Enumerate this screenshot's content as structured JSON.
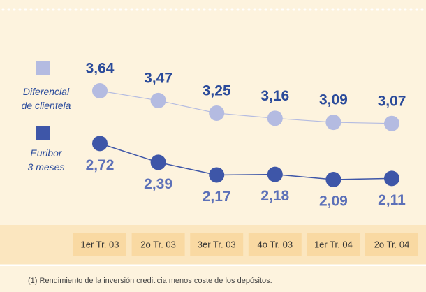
{
  "chart_data": {
    "type": "line",
    "categories": [
      "1er Tr. 03",
      "2o Tr. 03",
      "3er Tr. 03",
      "4o Tr. 03",
      "1er Tr. 04",
      "2o Tr. 04"
    ],
    "series": [
      {
        "name": "Diferencial de clientela",
        "color": "#b4bbe1",
        "values": [
          3.64,
          3.47,
          3.25,
          3.16,
          3.09,
          3.07
        ],
        "value_labels": [
          "3,64",
          "3,47",
          "3,25",
          "3,16",
          "3,09",
          "3,07"
        ]
      },
      {
        "name": "Euribor 3 meses",
        "color": "#3e56a8",
        "values": [
          2.72,
          2.39,
          2.17,
          2.18,
          2.09,
          2.11
        ],
        "value_labels": [
          "2,72",
          "2,39",
          "2,17",
          "2,18",
          "2,09",
          "2,11"
        ]
      }
    ],
    "footnote": "(1) Rendimiento de la inversión crediticia menos coste de los depósitos."
  }
}
